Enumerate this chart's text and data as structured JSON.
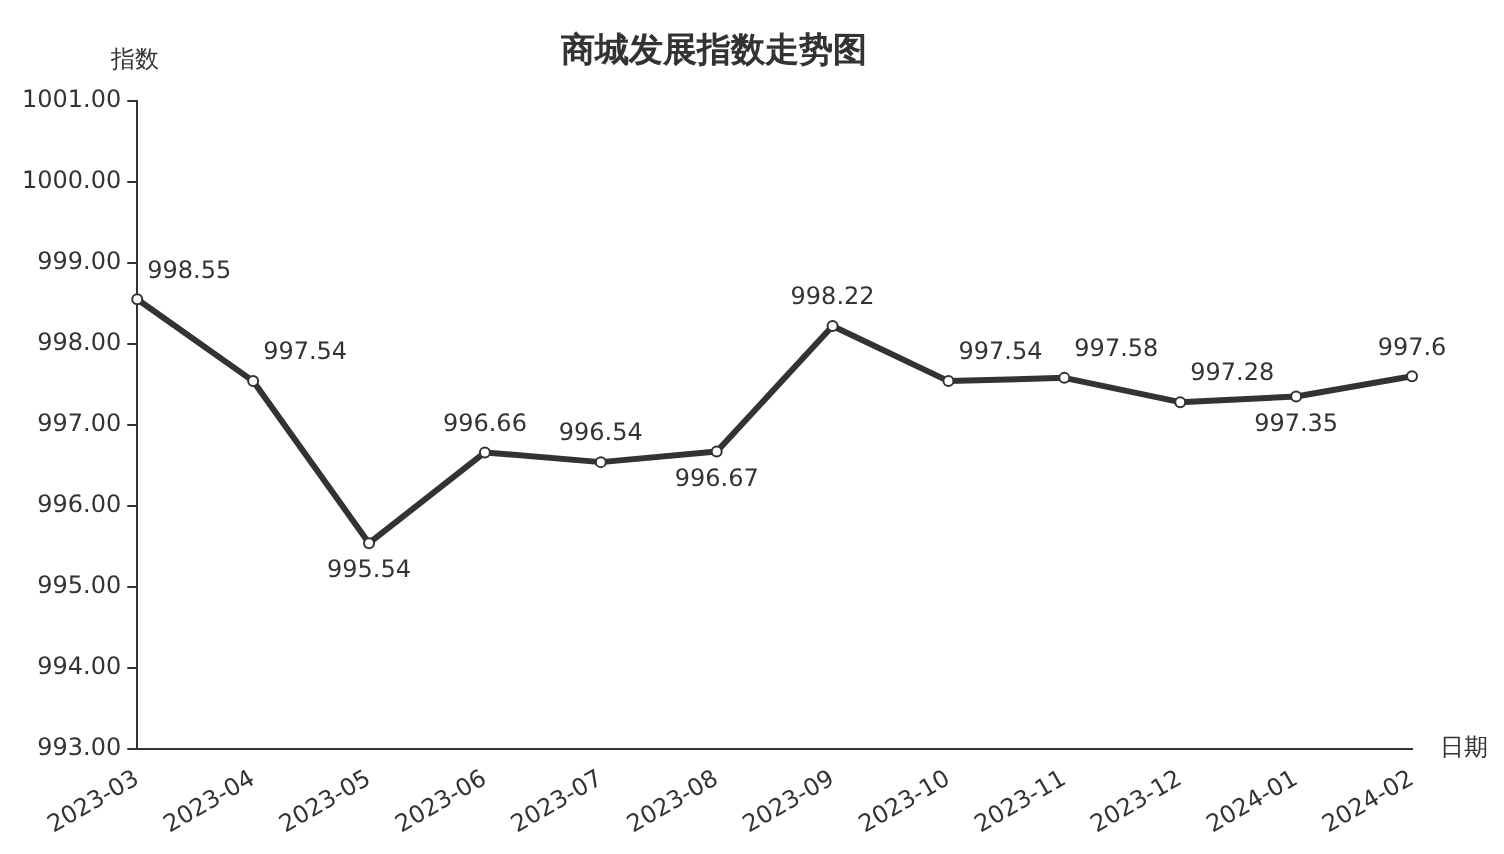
{
  "chart_data": {
    "type": "line",
    "title": "商城发展指数走势图",
    "xlabel": "日期",
    "ylabel": "指数",
    "categories": [
      "2023-03",
      "2023-04",
      "2023-05",
      "2023-06",
      "2023-07",
      "2023-08",
      "2023-09",
      "2023-10",
      "2023-11",
      "2023-12",
      "2024-01",
      "2024-02"
    ],
    "series": [
      {
        "color": "#333333",
        "values": [
          998.55,
          997.54,
          995.54,
          996.66,
          996.54,
          996.67,
          998.22,
          997.54,
          997.58,
          997.28,
          997.35,
          997.6
        ]
      }
    ],
    "ylim": [
      993,
      1001
    ],
    "yticks": [
      {
        "value": 993,
        "label": "993.00"
      },
      {
        "value": 994,
        "label": "994.00"
      },
      {
        "value": 995,
        "label": "995.00"
      },
      {
        "value": 996,
        "label": "996.00"
      },
      {
        "value": 997,
        "label": "997.00"
      },
      {
        "value": 998,
        "label": "998.00"
      },
      {
        "value": 999,
        "label": "999.00"
      },
      {
        "value": 1000,
        "label": "1000.00"
      },
      {
        "value": 1001,
        "label": "1001.00"
      }
    ],
    "grid": false,
    "legend": false,
    "marker": "circle",
    "line_style": "solid",
    "data_labels": true
  }
}
